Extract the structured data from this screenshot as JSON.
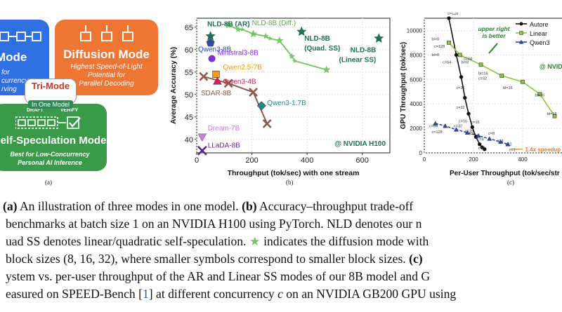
{
  "panel_a": {
    "top_left_title": "Mode",
    "top_left_sub": [
      "for",
      "currency",
      "rving"
    ],
    "diffusion_title": "Diffusion Mode",
    "diffusion_sub": [
      "Highest Speed-of-Light",
      "Potential for",
      "Parallel Decoding"
    ],
    "tri_mode": "Tri-Mode",
    "in_one_model": "In One Model",
    "draft": "DRAFT",
    "verify": "VERIFY",
    "selfspec_title": "Self-Speculation Mode",
    "selfspec_sub": [
      "Best for Low-Concurrency",
      "Personal AI Inference"
    ],
    "label": "(a)",
    "colors": {
      "blue": "#2f6fe0",
      "orange": "#ee7634",
      "green": "#3a9a49"
    }
  },
  "panel_b_label": "(b)",
  "panel_c_label": "(c)",
  "chart_data": [
    {
      "type": "scatter",
      "xlabel": "Throughput (tok/sec) with one stream",
      "ylabel": "Average Accuracy (%)",
      "xlim": [
        0,
        700
      ],
      "ylim": [
        37,
        67
      ],
      "xticks": [
        0,
        200,
        400,
        600
      ],
      "yticks": [
        40,
        45,
        50,
        55,
        60,
        65
      ],
      "annotation": "@ NVIDIA H100",
      "points": [
        {
          "label": "NLD-8B (AR)",
          "x": 50,
          "y": 63,
          "color": "#1e6f55",
          "marker": "star"
        },
        {
          "label": "NLD-8B (Quad. SS)",
          "x": 380,
          "y": 64,
          "color": "#1e6f55",
          "marker": "star"
        },
        {
          "label": "NLD-8B (Linear SS)",
          "x": 660,
          "y": 62.5,
          "color": "#1e6f55",
          "marker": "star"
        },
        {
          "label": "Qwen3-8B",
          "x": 50,
          "y": 61.5,
          "color": "#2f4aa0",
          "marker": "pentagon"
        },
        {
          "label": "Ministral3-8B",
          "x": 55,
          "y": 58,
          "color": "#8a2be2",
          "marker": "circle"
        },
        {
          "label": "Qwen2.5-7B",
          "x": 70,
          "y": 54.5,
          "color": "#f39c12",
          "marker": "square"
        },
        {
          "label": "Qwen3-4B",
          "x": 75,
          "y": 53,
          "color": "#d81b60",
          "marker": "triangle"
        },
        {
          "label": "Qwen3-1.7B",
          "x": 235,
          "y": 47.5,
          "color": "#1e8a8a",
          "marker": "diamond"
        },
        {
          "label": "Dream-7B",
          "x": 20,
          "y": 40.5,
          "color": "#c77dde",
          "marker": "triangle-down"
        },
        {
          "label": "LLaDA-8B",
          "x": 20,
          "y": 37.5,
          "color": "#5b2c83",
          "marker": "x"
        }
      ],
      "series": [
        {
          "name": "NLD-8B (Diff.)",
          "color": "#7cc36b",
          "marker": "star",
          "points": [
            [
              115,
              65.5
            ],
            [
              150,
              64.5
            ],
            [
              165,
              64.5
            ],
            [
              205,
              63.5
            ],
            [
              250,
              63
            ],
            [
              265,
              62.5
            ],
            [
              300,
              62
            ],
            [
              345,
              58.5
            ],
            [
              355,
              57.5
            ],
            [
              470,
              55.5
            ]
          ]
        },
        {
          "name": "SDAR-8B",
          "color": "#8b5a4a",
          "marker": "x",
          "points": [
            [
              25,
              54
            ],
            [
              115,
              52.5
            ],
            [
              205,
              50.5
            ],
            [
              255,
              43.5
            ]
          ]
        }
      ],
      "point_labels": {
        "nld_ar": "NLD-8B (AR)",
        "nld_diff": "NLD-8B (Diff.)",
        "nld_quad_1": "NLD-8B",
        "nld_quad_2": "(Quad. SS)",
        "nld_lin_1": "NLD-8B",
        "nld_lin_2": "(Linear SS)",
        "qwen3_8b": "Qwen3-8B",
        "ministral": "Ministral3-8B",
        "qwen25": "Qwen2.5-7B",
        "qwen34": "Qwen3-4B",
        "sdar": "SDAR-8B",
        "qwen317": "Qwen3-1.7B",
        "dream": "Dream-7B",
        "llada": "LLaDA-8B"
      }
    },
    {
      "type": "line",
      "xlabel": "Per-User Throughput (tok/sec/str",
      "ylabel": "GPU Throughput (tok/sec)",
      "xlim": [
        0,
        560
      ],
      "ylim": [
        0,
        11000
      ],
      "xticks": [
        0,
        200,
        400
      ],
      "yticks": [
        0,
        2000,
        4000,
        6000,
        8000,
        10000
      ],
      "legend": "top-right",
      "annotation_1": "upper right",
      "annotation_2": "is better",
      "speedup": "1.4x speedup",
      "nvidia_label": "@ NVID",
      "series": [
        {
          "name": "Autore",
          "color": "#111111",
          "marker": "circle",
          "points": [
            [
              100,
              11000
            ],
            [
              130,
              8000
            ],
            [
              150,
              6200
            ],
            [
              165,
              4500
            ],
            [
              180,
              3200
            ],
            [
              195,
              2100
            ],
            [
              210,
              1300
            ],
            [
              225,
              700
            ],
            [
              235,
              450
            ],
            [
              245,
              300
            ]
          ]
        },
        {
          "name": "Linear",
          "color": "#8cc63f",
          "marker": "square",
          "points": [
            [
              100,
              9000
            ],
            [
              145,
              8000
            ],
            [
              230,
              7200
            ],
            [
              315,
              6300
            ],
            [
              400,
              5800
            ],
            [
              470,
              4800
            ],
            [
              530,
              3000
            ]
          ]
        },
        {
          "name": "Qwen3",
          "color": "#2f4aa0",
          "marker": "triangle",
          "points": [
            [
              45,
              2400
            ],
            [
              85,
              2200
            ],
            [
              130,
              1900
            ],
            [
              175,
              1650
            ],
            [
              220,
              1400
            ],
            [
              265,
              1150
            ],
            [
              310,
              900
            ],
            [
              340,
              700
            ]
          ]
        }
      ],
      "point_labels": [
        "c=128",
        "bl=8",
        "c=128",
        "bl=8",
        "c=64",
        "c=64",
        "bl=8",
        "c=32",
        "bl=16",
        "c=32",
        "c=32",
        "bl=16",
        "c=16",
        "bl=16",
        "c=16",
        "c=64",
        "c=128",
        "bl=16",
        "c=8",
        "c=32",
        "c=16",
        "c=8",
        "c=4",
        "c=2",
        "c=1",
        "c=4",
        "c=2"
      ]
    }
  ],
  "caption": {
    "l1_a": "(a)",
    "l1_b": " An illustration of three modes in one model.  ",
    "l1_c": "(b)",
    "l1_d": " Accuracy–throughput trade-off",
    "l2": "benchmarks at batch size 1 on an NVIDIA H100 using PyTorch. NLD denotes our n",
    "l3_a": "uad SS denotes linear/quadratic self-speculation.  ",
    "l3_star": "★",
    "l3_b": " indicates the diffusion mode with",
    "l4_a": "block sizes (8, 16, 32), where smaller symbols correspond to smaller block sizes.  ",
    "l4_c": "(c)",
    "l5_a": "ystem vs.  per-user throughput of the AR and Linear SS modes of our 8B model and G",
    "l6_a": "easured on SPEED-Bench [",
    "l6_ref": "1",
    "l6_b": "] at different concurrency ",
    "l6_c": "c",
    "l6_d": " on an NVIDIA GB200 GPU using"
  }
}
